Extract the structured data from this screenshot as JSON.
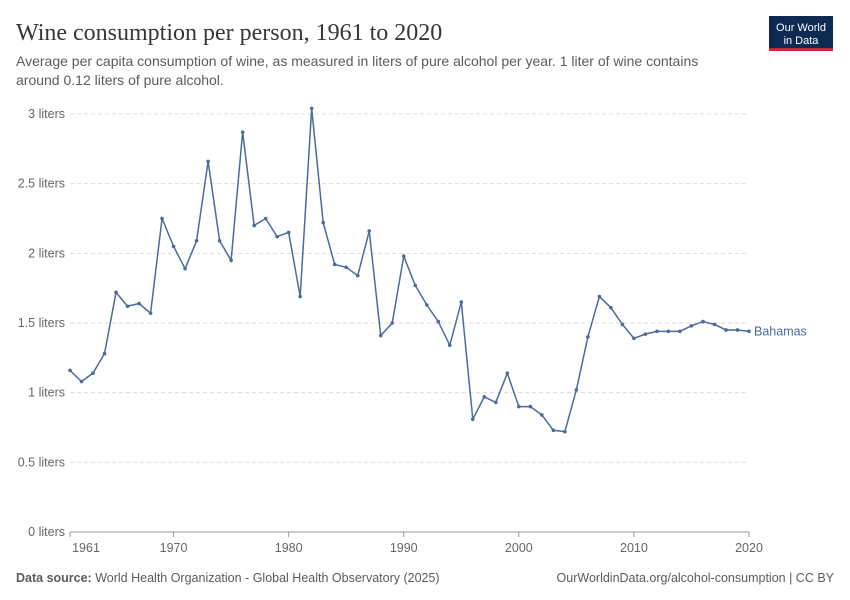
{
  "chart_data": {
    "type": "line",
    "title": "Wine consumption per person, 1961 to 2020",
    "subtitle": [
      "Average per capita consumption of wine, as measured in liters of pure alcohol per year. 1 liter of wine contains",
      "around 0.12 liters of pure alcohol."
    ],
    "x": [
      1961,
      1962,
      1963,
      1964,
      1965,
      1966,
      1967,
      1968,
      1969,
      1970,
      1971,
      1972,
      1973,
      1974,
      1975,
      1976,
      1977,
      1978,
      1979,
      1980,
      1981,
      1982,
      1983,
      1984,
      1985,
      1986,
      1987,
      1988,
      1989,
      1990,
      1991,
      1992,
      1993,
      1994,
      1995,
      1996,
      1997,
      1998,
      1999,
      2000,
      2001,
      2002,
      2003,
      2004,
      2005,
      2006,
      2007,
      2008,
      2009,
      2010,
      2011,
      2012,
      2013,
      2014,
      2015,
      2016,
      2017,
      2018,
      2019,
      2020
    ],
    "series": [
      {
        "name": "Bahamas",
        "color": "#4c6a9c",
        "values": [
          1.16,
          1.08,
          1.14,
          1.28,
          1.72,
          1.62,
          1.64,
          1.57,
          2.25,
          2.05,
          1.89,
          2.09,
          2.66,
          2.09,
          1.95,
          2.87,
          2.2,
          2.25,
          2.12,
          2.15,
          1.69,
          3.04,
          2.22,
          1.92,
          1.9,
          1.84,
          2.16,
          1.41,
          1.5,
          1.98,
          1.77,
          1.63,
          1.51,
          1.34,
          1.65,
          0.81,
          0.97,
          0.93,
          1.14,
          0.9,
          0.9,
          0.84,
          0.73,
          0.72,
          1.02,
          1.4,
          1.69,
          1.61,
          1.49,
          1.39,
          1.42,
          1.44,
          1.44,
          1.44,
          1.48,
          1.51,
          1.49,
          1.45,
          1.45,
          1.44
        ]
      }
    ],
    "xlim": [
      1961,
      2020
    ],
    "xticks": [
      1961,
      1970,
      1980,
      1990,
      2000,
      2010,
      2020
    ],
    "ylim": [
      0,
      3
    ],
    "yticks": [
      {
        "value": 0,
        "label": "0 liters"
      },
      {
        "value": 0.5,
        "label": "0.5 liters"
      },
      {
        "value": 1,
        "label": "1 liters"
      },
      {
        "value": 1.5,
        "label": "1.5 liters"
      },
      {
        "value": 2,
        "label": "2 liters"
      },
      {
        "value": 2.5,
        "label": "2.5 liters"
      },
      {
        "value": 3,
        "label": "3 liters"
      }
    ],
    "grid": true
  },
  "logo": [
    "Our World",
    "in Data"
  ],
  "footer": {
    "source_label": "Data source:",
    "source": "World Health Organization - Global Health Observatory (2025)",
    "url": "OurWorldinData.org/alcohol-consumption | CC BY"
  }
}
